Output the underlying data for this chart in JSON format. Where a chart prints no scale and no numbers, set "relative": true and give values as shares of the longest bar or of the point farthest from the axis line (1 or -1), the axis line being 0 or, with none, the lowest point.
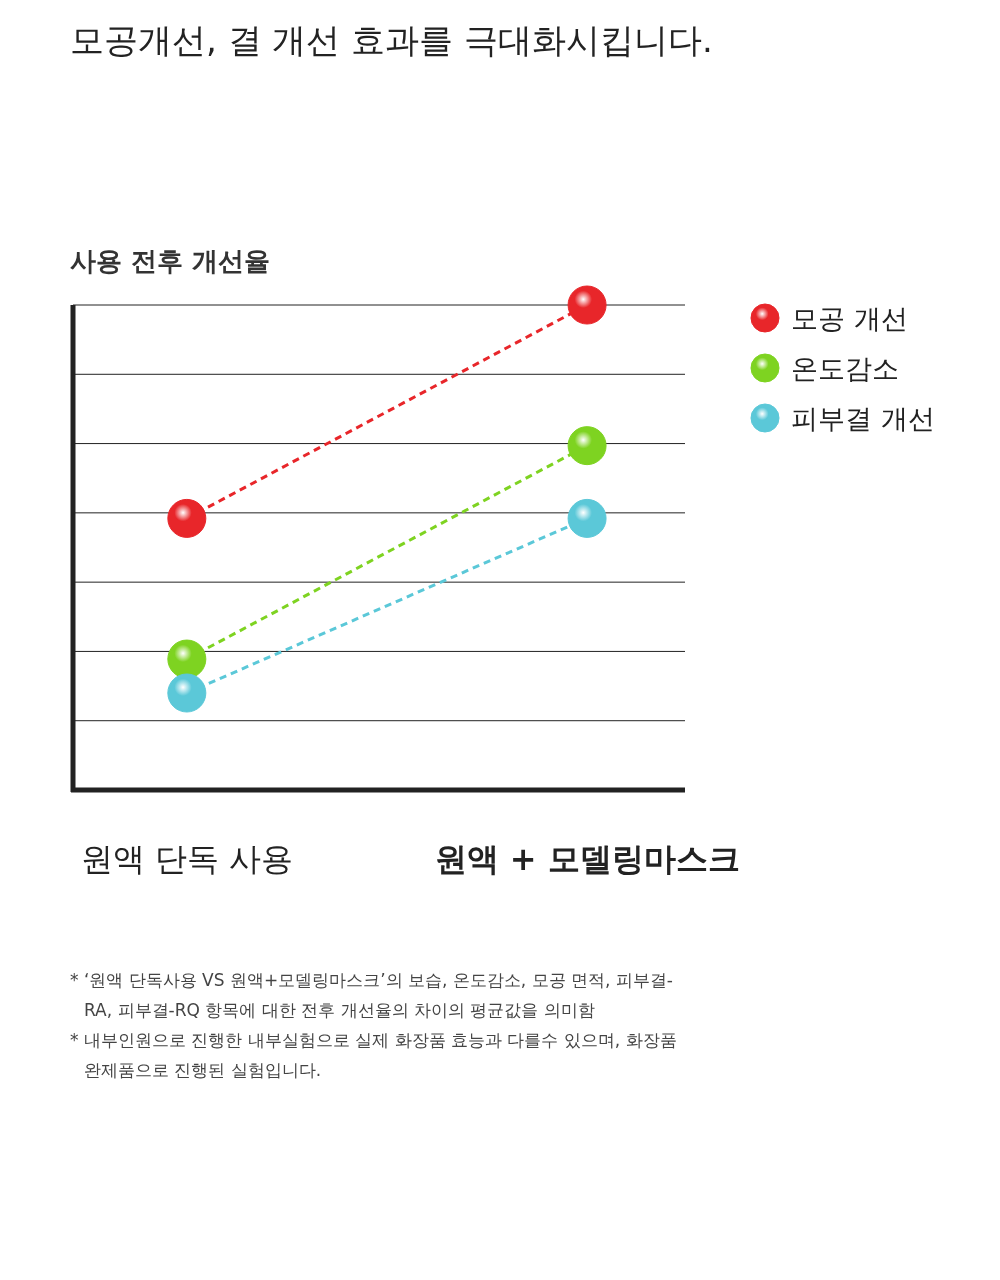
{
  "chart_data": {
    "type": "line",
    "title": "모공개선, 결 개선 효과를 극대화시킵니다.",
    "subtitle": "사용 전후 개선율",
    "categories": [
      "원액 단독 사용",
      "원액 + 모델링마스크"
    ],
    "relative": true,
    "series": [
      {
        "name": "모공 개선",
        "color": "#e8262a",
        "values": [
          0.56,
          1
        ]
      },
      {
        "name": "온도감소",
        "color": "#7ed321",
        "values": [
          0.27,
          0.71
        ]
      },
      {
        "name": "피부결 개선",
        "color": "#5bc8d8",
        "values": [
          0.2,
          0.56
        ]
      }
    ],
    "marker": "circle",
    "line_style": "dashed",
    "grid": true,
    "legend": "top right",
    "annotations": [
      "* ‘원액 단독사용 VS 원액+모델링마스크’의 보습, 온도감소, 모공 면적, 피부결-RA, 피부결-RQ 항목에 대한 전후 개선율의 차이의 평균값을 의미함",
      "* 내부인원으로 진행한 내부실험으로 실제 화장품 효능과 다를수 있으며, 화장품 완제품으로 진행된 실험입니다."
    ]
  }
}
